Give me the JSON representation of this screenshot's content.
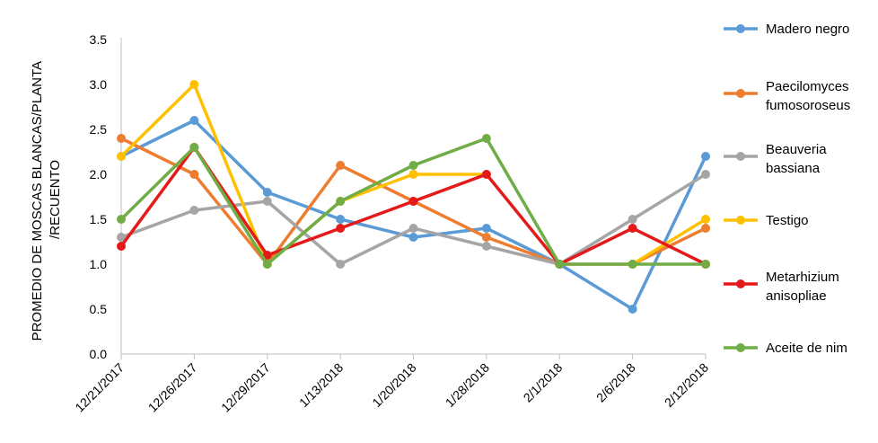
{
  "chart_data": {
    "type": "line",
    "title": "",
    "ylabel_lines": [
      "PROMEDIO DE MOSCAS BLANCAS/PLANTA",
      "/RECUENTO"
    ],
    "xlabel": "",
    "categories": [
      "12/21/2017",
      "12/26/2017",
      "12/29/2017",
      "1/13/2018",
      "1/20/2018",
      "1/28/2018",
      "2/1/2018",
      "2/6/2018",
      "2/12/2018"
    ],
    "y_ticks": [
      "0.0",
      "0.5",
      "1.0",
      "1.5",
      "2.0",
      "2.5",
      "3.0",
      "3.5"
    ],
    "ylim": [
      0,
      3.5
    ],
    "grid": false,
    "legend_position": "right",
    "series": [
      {
        "name_lines": [
          "Madero negro"
        ],
        "color": "#5B9BD5",
        "values": [
          2.2,
          2.6,
          1.8,
          1.5,
          1.3,
          1.4,
          1.0,
          0.5,
          2.2
        ]
      },
      {
        "name_lines": [
          "Paecilomyces",
          "fumosoroseus"
        ],
        "color": "#ED7D31",
        "values": [
          2.4,
          2.0,
          1.0,
          2.1,
          1.7,
          1.3,
          1.0,
          1.0,
          1.4
        ]
      },
      {
        "name_lines": [
          "Beauveria",
          "bassiana"
        ],
        "color": "#A5A5A5",
        "values": [
          1.3,
          1.6,
          1.7,
          1.0,
          1.4,
          1.2,
          1.0,
          1.5,
          2.0
        ]
      },
      {
        "name_lines": [
          "Testigo"
        ],
        "color": "#FFC000",
        "values": [
          2.2,
          3.0,
          1.0,
          1.7,
          2.0,
          2.0,
          null,
          1.0,
          1.5
        ]
      },
      {
        "name_lines": [
          "Metarhizium",
          "anisopliae"
        ],
        "color": "#E41A1A",
        "values": [
          1.2,
          2.3,
          1.1,
          1.4,
          1.7,
          2.0,
          1.0,
          1.4,
          1.0
        ]
      },
      {
        "name_lines": [
          "Aceite de nim"
        ],
        "color": "#70AD47",
        "values": [
          1.5,
          2.3,
          1.0,
          1.7,
          2.1,
          2.4,
          1.0,
          1.0,
          1.0
        ]
      }
    ]
  }
}
